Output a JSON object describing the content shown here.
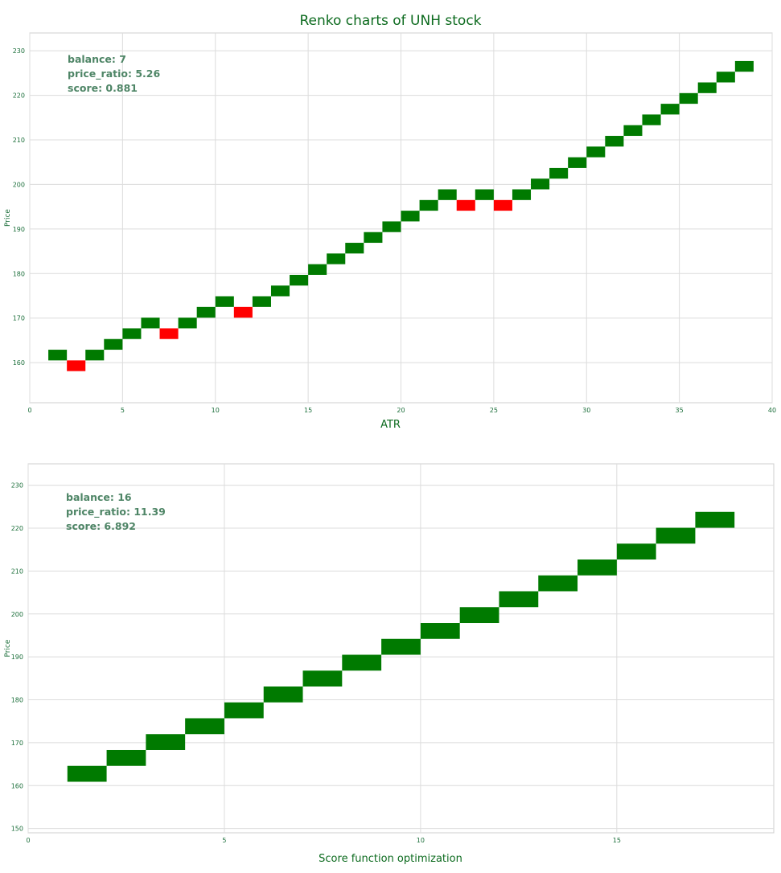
{
  "chart_data": [
    {
      "type": "renko",
      "title": "Renko charts of UNH stock",
      "xlabel": "ATR",
      "ylabel": "Price",
      "xlim": [
        0,
        40
      ],
      "ylim": [
        151,
        234
      ],
      "xticks": [
        0,
        5,
        10,
        15,
        20,
        25,
        30,
        35,
        40
      ],
      "yticks": [
        160,
        170,
        180,
        190,
        200,
        210,
        220,
        230
      ],
      "grid": true,
      "annotations": [
        "balance: 7",
        "price_ratio: 5.26",
        "score: 0.881"
      ],
      "brick_size": 2.4,
      "brick_colors": {
        "up": "#007a00",
        "down": "#ff0000"
      },
      "bricks": [
        {
          "x": 1,
          "low": 160.5,
          "dir": "up"
        },
        {
          "x": 2,
          "low": 158.1,
          "dir": "down"
        },
        {
          "x": 3,
          "low": 160.5,
          "dir": "up"
        },
        {
          "x": 4,
          "low": 162.9,
          "dir": "up"
        },
        {
          "x": 5,
          "low": 165.3,
          "dir": "up"
        },
        {
          "x": 6,
          "low": 167.7,
          "dir": "up"
        },
        {
          "x": 7,
          "low": 165.3,
          "dir": "down"
        },
        {
          "x": 8,
          "low": 167.7,
          "dir": "up"
        },
        {
          "x": 9,
          "low": 170.1,
          "dir": "up"
        },
        {
          "x": 10,
          "low": 172.5,
          "dir": "up"
        },
        {
          "x": 11,
          "low": 170.1,
          "dir": "down"
        },
        {
          "x": 12,
          "low": 172.5,
          "dir": "up"
        },
        {
          "x": 13,
          "low": 174.9,
          "dir": "up"
        },
        {
          "x": 14,
          "low": 177.3,
          "dir": "up"
        },
        {
          "x": 15,
          "low": 179.7,
          "dir": "up"
        },
        {
          "x": 16,
          "low": 182.1,
          "dir": "up"
        },
        {
          "x": 17,
          "low": 184.5,
          "dir": "up"
        },
        {
          "x": 18,
          "low": 186.9,
          "dir": "up"
        },
        {
          "x": 19,
          "low": 189.3,
          "dir": "up"
        },
        {
          "x": 20,
          "low": 191.7,
          "dir": "up"
        },
        {
          "x": 21,
          "low": 194.1,
          "dir": "up"
        },
        {
          "x": 22,
          "low": 196.5,
          "dir": "up"
        },
        {
          "x": 23,
          "low": 194.1,
          "dir": "down"
        },
        {
          "x": 24,
          "low": 196.5,
          "dir": "up"
        },
        {
          "x": 25,
          "low": 194.1,
          "dir": "down"
        },
        {
          "x": 26,
          "low": 196.5,
          "dir": "up"
        },
        {
          "x": 27,
          "low": 198.9,
          "dir": "up"
        },
        {
          "x": 28,
          "low": 201.3,
          "dir": "up"
        },
        {
          "x": 29,
          "low": 203.7,
          "dir": "up"
        },
        {
          "x": 30,
          "low": 206.1,
          "dir": "up"
        },
        {
          "x": 31,
          "low": 208.5,
          "dir": "up"
        },
        {
          "x": 32,
          "low": 210.9,
          "dir": "up"
        },
        {
          "x": 33,
          "low": 213.3,
          "dir": "up"
        },
        {
          "x": 34,
          "low": 215.7,
          "dir": "up"
        },
        {
          "x": 35,
          "low": 218.1,
          "dir": "up"
        },
        {
          "x": 36,
          "low": 220.5,
          "dir": "up"
        },
        {
          "x": 37,
          "low": 222.9,
          "dir": "up"
        },
        {
          "x": 38,
          "low": 225.3,
          "dir": "up"
        }
      ]
    },
    {
      "type": "renko",
      "title": "",
      "xlabel": "Score function optimization",
      "ylabel": "Price",
      "xlim": [
        0,
        19
      ],
      "ylim": [
        149,
        235
      ],
      "xticks": [
        0,
        5,
        10,
        15
      ],
      "yticks": [
        150,
        160,
        170,
        180,
        190,
        200,
        210,
        220,
        230
      ],
      "grid": true,
      "annotations": [
        "balance: 16",
        "price_ratio: 11.39",
        "score: 6.892"
      ],
      "brick_size": 3.7,
      "brick_colors": {
        "up": "#007a00",
        "down": "#ff0000"
      },
      "bricks": [
        {
          "x": 1,
          "low": 160.9,
          "dir": "up"
        },
        {
          "x": 2,
          "low": 164.6,
          "dir": "up"
        },
        {
          "x": 3,
          "low": 168.3,
          "dir": "up"
        },
        {
          "x": 4,
          "low": 172.0,
          "dir": "up"
        },
        {
          "x": 5,
          "low": 175.7,
          "dir": "up"
        },
        {
          "x": 6,
          "low": 179.4,
          "dir": "up"
        },
        {
          "x": 7,
          "low": 183.1,
          "dir": "up"
        },
        {
          "x": 8,
          "low": 186.8,
          "dir": "up"
        },
        {
          "x": 9,
          "low": 190.5,
          "dir": "up"
        },
        {
          "x": 10,
          "low": 194.2,
          "dir": "up"
        },
        {
          "x": 11,
          "low": 197.9,
          "dir": "up"
        },
        {
          "x": 12,
          "low": 201.6,
          "dir": "up"
        },
        {
          "x": 13,
          "low": 205.3,
          "dir": "up"
        },
        {
          "x": 14,
          "low": 209.0,
          "dir": "up"
        },
        {
          "x": 15,
          "low": 212.7,
          "dir": "up"
        },
        {
          "x": 16,
          "low": 216.4,
          "dir": "up"
        },
        {
          "x": 17,
          "low": 220.1,
          "dir": "up"
        }
      ]
    }
  ]
}
